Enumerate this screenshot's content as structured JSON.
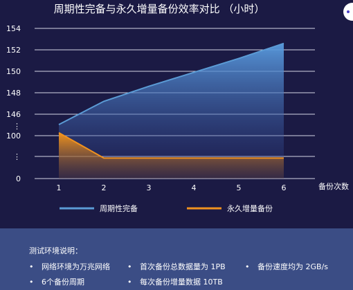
{
  "chart_data": {
    "type": "area",
    "title": "周期性完备与永久增量备份效率对比 （小时）",
    "xlabel": "备份次数",
    "ylabel": "",
    "categories": [
      "1",
      "2",
      "3",
      "4",
      "5",
      "6"
    ],
    "y_tick_labels": [
      "0",
      "⋮",
      "100",
      "⋮",
      "146",
      "148",
      "150",
      "152",
      "154"
    ],
    "y_axis_note": "broken axis: 0 … 100 … then 146–154",
    "series": [
      {
        "name": "周期性完备",
        "values": [
          145.8,
          147.2,
          148.6,
          149.9,
          151.2,
          152.6
        ],
        "color": "#5b9bd5"
      },
      {
        "name": "永久增量备份",
        "values": [
          112,
          28,
          28,
          28,
          28,
          28
        ],
        "color": "#f0921f"
      }
    ],
    "grid": true,
    "legend_position": "bottom"
  },
  "legend": {
    "items": [
      "周期性完备",
      "永久增量备份"
    ]
  },
  "notes": {
    "title": "测试环境说明：",
    "items": [
      "网络环境为万兆网络",
      "首次备份总数据量为 1PB",
      "备份速度均为 2GB/s",
      "6个备份周期",
      "每次备份增量数据 10TB"
    ]
  }
}
